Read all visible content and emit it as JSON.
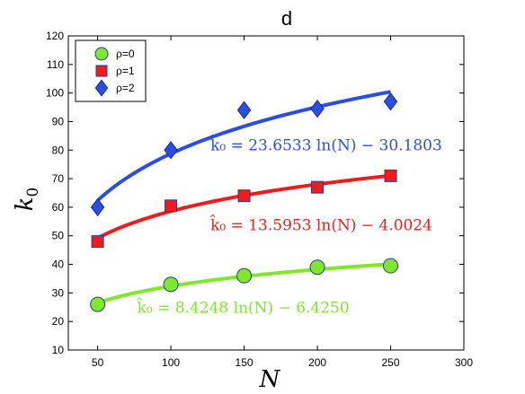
{
  "chart_data": {
    "type": "line",
    "title": "d",
    "xlabel": "N",
    "ylabel": "k0",
    "xlim": [
      30,
      300
    ],
    "ylim": [
      10,
      120
    ],
    "xticks": [
      50,
      100,
      150,
      200,
      250,
      300
    ],
    "yticks": [
      10,
      20,
      30,
      40,
      50,
      60,
      70,
      80,
      90,
      100,
      110,
      120
    ],
    "grid": false,
    "legend_position": "top-left",
    "series": [
      {
        "name": "ρ=0",
        "color": "#7fe82a",
        "marker": "circle",
        "x": [
          50,
          100,
          150,
          200,
          250
        ],
        "y": [
          26,
          33,
          36,
          39,
          39.5
        ],
        "fit": {
          "a": 8.4248,
          "b": -6.425
        }
      },
      {
        "name": "ρ=1",
        "color": "#ee1c1c",
        "marker": "square",
        "x": [
          50,
          100,
          150,
          200,
          250
        ],
        "y": [
          48,
          60.5,
          64,
          67,
          71
        ],
        "fit": {
          "a": 13.5953,
          "b": -4.0024
        }
      },
      {
        "name": "ρ=2",
        "color": "#2b4ee0",
        "marker": "diamond",
        "x": [
          50,
          100,
          150,
          200,
          250
        ],
        "y": [
          60,
          80,
          94,
          94.5,
          97
        ],
        "fit": {
          "a": 23.6533,
          "b": -30.1803
        }
      }
    ],
    "annotations": [
      {
        "text": "k̂₀ = 23.6533 ln(N) − 30.1803",
        "color": "#2b4ee0",
        "x": 127,
        "y": 80
      },
      {
        "text": "k̂₀ = 13.5953 ln(N) − 4.0024",
        "color": "#ee1c1c",
        "x": 127,
        "y": 52
      },
      {
        "text": "k̂₀ = 8.4248 ln(N) − 6.4250",
        "color": "#7fe82a",
        "x": 77,
        "y": 23
      }
    ]
  }
}
